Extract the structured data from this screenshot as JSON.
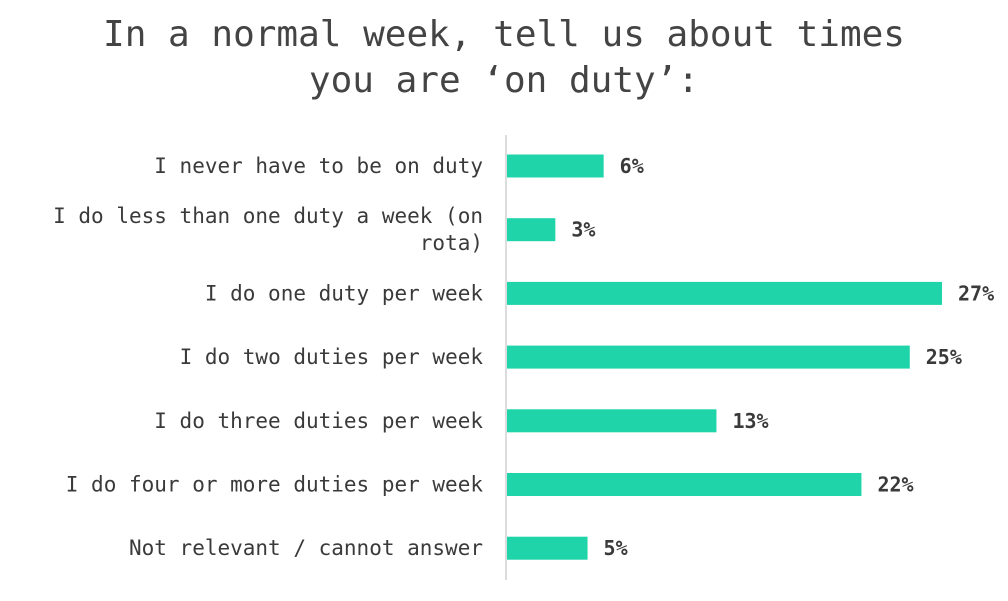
{
  "chart_data": {
    "type": "bar",
    "orientation": "horizontal",
    "title": "In a normal week, tell us about times you are ‘on duty’:",
    "title_lines": [
      "In a normal week, tell us about times",
      "you are ‘on duty’:"
    ],
    "categories": [
      "I never have to be on duty",
      "I do less than one duty a week (on rota)",
      "I do one duty per week",
      "I do two duties per week",
      "I do three duties per week",
      "I do four or more duties per week",
      "Not relevant / cannot answer"
    ],
    "category_lines": [
      [
        "I never have to be on duty"
      ],
      [
        "I do less than one duty a week (on",
        "rota)"
      ],
      [
        "I do one duty per week"
      ],
      [
        "I do two duties per week"
      ],
      [
        "I do three duties per week"
      ],
      [
        "I do four or more duties per week"
      ],
      [
        "Not relevant / cannot answer"
      ]
    ],
    "values": [
      6,
      3,
      27,
      25,
      13,
      22,
      5
    ],
    "value_labels": [
      "6%",
      "3%",
      "27%",
      "25%",
      "13%",
      "22%",
      "5%"
    ],
    "unit": "%",
    "xlim": [
      0,
      27
    ],
    "grid": false,
    "legend": "none",
    "colors": {
      "bar": "#1fd4a8",
      "axis": "#d0d0d0",
      "text": "#3a3a3a",
      "title": "#444444"
    }
  }
}
